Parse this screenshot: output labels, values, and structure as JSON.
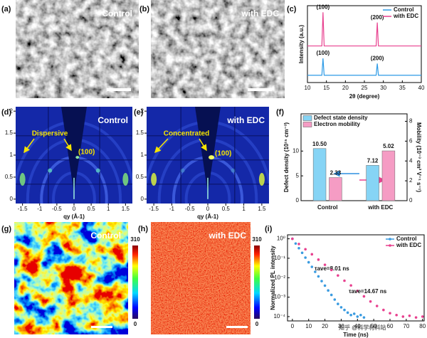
{
  "panels": {
    "a": {
      "label": "(a)",
      "text": "Control"
    },
    "b": {
      "label": "(b)",
      "text": "with EDC"
    },
    "c": {
      "label": "(c)"
    },
    "d": {
      "label": "(d)",
      "text": "Control",
      "annotations": [
        "Dispersive",
        "(100)"
      ],
      "xlabel": "qy (Å-1)",
      "xlim": [
        -1.7,
        1.7
      ],
      "ylim": [
        -0.1,
        2.1
      ],
      "xticks": [
        -1.5,
        -1,
        -0.5,
        0,
        0.5,
        1,
        1.5
      ],
      "yticks": [
        0,
        0.5,
        1,
        1.5,
        2
      ]
    },
    "e": {
      "label": "(e)",
      "text": "with EDC",
      "annotations": [
        "Concentrated",
        "(100)"
      ],
      "xlabel": "qy (Å-1)",
      "xlim": [
        -1.7,
        1.7
      ],
      "ylim": [
        -0.1,
        2.1
      ],
      "xticks": [
        -1.5,
        -1,
        -0.5,
        0,
        0.5,
        1,
        1.5
      ],
      "yticks": [
        0,
        0.5,
        1,
        1.5,
        2
      ]
    },
    "f": {
      "label": "(f)"
    },
    "g": {
      "label": "(g)",
      "text": "Control",
      "cbar_lim": [
        0,
        310
      ],
      "cbar_ticks": [
        0,
        310
      ]
    },
    "h": {
      "label": "(h)",
      "text": "with EDC",
      "cbar_lim": [
        0,
        310
      ],
      "cbar_ticks": [
        0,
        310
      ]
    },
    "i": {
      "label": "(i)"
    }
  },
  "chart_data": [
    {
      "type": "line",
      "xlabel": "2θ (degree)",
      "ylabel": "Intensity (a.u.)",
      "x": [
        10,
        13.8,
        14.1,
        14.4,
        28.1,
        28.4,
        28.7,
        40
      ],
      "xlim": [
        10,
        40
      ],
      "xticks": [
        10,
        15,
        20,
        25,
        30,
        35,
        40
      ],
      "ylim": [
        0,
        10.5
      ],
      "legend": "upper right",
      "series": [
        {
          "name": "Control",
          "color": "#2e9be6",
          "values": [
            1,
            1,
            3.3,
            1,
            1,
            2.6,
            1,
            1
          ],
          "peak_labels": [
            "(100)",
            "(200)"
          ]
        },
        {
          "name": "with EDC",
          "color": "#e8418f",
          "values": [
            5,
            5,
            9.6,
            5,
            5,
            8.2,
            5,
            5
          ],
          "peak_labels": [
            "(100)",
            "(200)"
          ]
        }
      ]
    },
    {
      "type": "bar",
      "categories": [
        "Control",
        "with EDC"
      ],
      "ylabel": "Defect density (10¹⁵ cm⁻³)",
      "y2label": "Mobility (10⁻³ cm² V⁻¹ s⁻¹)",
      "ylim": [
        0,
        17.5
      ],
      "yticks": [
        0,
        5,
        10
      ],
      "y2lim": [
        0,
        8.75
      ],
      "y2ticks": [
        0,
        2,
        4,
        6,
        8
      ],
      "legend": "upper left",
      "series": [
        {
          "name": "Defect state density",
          "color": "#86d4f5",
          "values": [
            10.5,
            7.12
          ],
          "value_labels": [
            "10.50",
            "7.12"
          ]
        },
        {
          "name": "Electron mobility",
          "color": "#f59cc4",
          "axis": "y2",
          "values": [
            2.33,
            5.02
          ],
          "value_labels": [
            "2.33",
            "5.02"
          ]
        }
      ]
    },
    {
      "type": "scatter",
      "xlabel": "Time (ns)",
      "ylabel": "Normalized PL intensity",
      "ylog": true,
      "xlim": [
        -3,
        81
      ],
      "xticks": [
        0,
        10,
        20,
        30,
        40,
        50,
        60,
        70,
        80
      ],
      "ylim": [
        6e-05,
        1.6
      ],
      "yticks": [
        {
          "value": 1,
          "label": "10⁰"
        },
        {
          "value": 0.1,
          "label": "10⁻¹"
        },
        {
          "value": 0.01,
          "label": "10⁻²"
        },
        {
          "value": 0.001,
          "label": "10⁻³"
        },
        {
          "value": 0.0001,
          "label": "10⁻⁴"
        }
      ],
      "legend": "upper right",
      "series": [
        {
          "name": "Control",
          "color": "#3a9be0",
          "annotation": "τave=8.01 ns",
          "x": [
            0,
            2,
            4,
            6,
            8,
            10,
            12,
            14,
            16,
            18,
            20,
            22,
            24,
            26,
            28,
            30,
            32,
            34,
            36,
            38,
            40,
            42,
            44
          ],
          "values": [
            1,
            0.57,
            0.33,
            0.19,
            0.108,
            0.062,
            0.036,
            0.02,
            0.0117,
            0.0067,
            0.0039,
            0.0022,
            0.0013,
            0.00075,
            0.00045,
            0.0003,
            0.00022,
            0.00016,
            0.00012,
            0.00014,
            0.0001,
            0.00012,
            9e-05
          ]
        },
        {
          "name": "with EDC",
          "color": "#e8418f",
          "annotation": "τave=14.67 ns",
          "x": [
            0,
            4,
            8,
            12,
            16,
            20,
            24,
            28,
            32,
            36,
            40,
            44,
            48,
            52,
            56,
            60,
            64,
            68,
            72,
            76,
            80
          ],
          "values": [
            1,
            0.54,
            0.29,
            0.16,
            0.085,
            0.046,
            0.025,
            0.013,
            0.007,
            0.004,
            0.0021,
            0.0011,
            0.0006,
            0.00035,
            0.00022,
            0.00015,
            0.00012,
            0.0001,
            0.00011,
            9e-05,
            0.0001
          ]
        }
      ]
    }
  ],
  "watermark": "知乎 @科学材料站"
}
